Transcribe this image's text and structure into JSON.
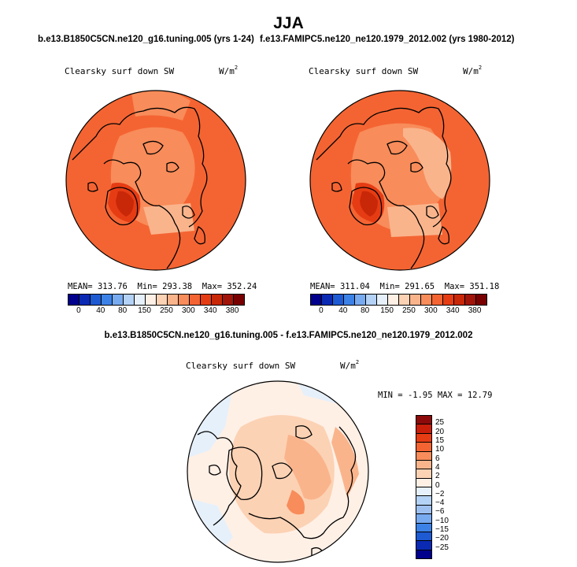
{
  "title": "JJA",
  "panels": [
    {
      "case": "b.e13.B1850C5CN.ne120_g16.tuning.005 (yrs 1-24)",
      "variable": "Clearsky surf down SW",
      "units_base": "W/m",
      "units_exp": "2",
      "stats": {
        "mean_label": "MEAN=",
        "mean": "313.76",
        "min_label": "Min=",
        "min": "293.38",
        "max_label": "Max=",
        "max": "352.24"
      },
      "colorbar_ticks": [
        "0",
        "40",
        "80",
        "150",
        "250",
        "300",
        "340",
        "380"
      ]
    },
    {
      "case": "f.e13.FAMIPC5.ne120_ne120.1979_2012.002 (yrs 1980-2012)",
      "variable": "Clearsky surf down SW",
      "units_base": "W/m",
      "units_exp": "2",
      "stats": {
        "mean_label": "MEAN=",
        "mean": "311.04",
        "min_label": "Min=",
        "min": "291.65",
        "max_label": "Max=",
        "max": "351.18"
      },
      "colorbar_ticks": [
        "0",
        "40",
        "80",
        "150",
        "250",
        "300",
        "340",
        "380"
      ]
    }
  ],
  "abs_colorbar_colors": [
    "#00008c",
    "#0a2ab4",
    "#1e5ad2",
    "#3c82e6",
    "#78aaf0",
    "#b4d2f5",
    "#e6f0fa",
    "#fff0e6",
    "#fcd2b4",
    "#fab48c",
    "#f88c5a",
    "#f46432",
    "#e63c14",
    "#c82808",
    "#a0140a",
    "#780000"
  ],
  "diff": {
    "title": "b.e13.B1850C5CN.ne120_g16.tuning.005 - f.e13.FAMIPC5.ne120_ne120.1979_2012.002",
    "variable": "Clearsky surf down SW",
    "units_base": "W/m",
    "units_exp": "2",
    "stats": {
      "min_label": "MIN =",
      "min": "-1.95",
      "max_label": "MAX =",
      "max": "12.79"
    },
    "colorbar_ticks": [
      "25",
      "20",
      "15",
      "10",
      "6",
      "4",
      "2",
      "0",
      "−2",
      "−4",
      "−6",
      "−10",
      "−15",
      "−20",
      "−25"
    ],
    "colorbar_colors": [
      "#8c0a0a",
      "#c81e0a",
      "#e63c14",
      "#f46432",
      "#f88c5a",
      "#fab48c",
      "#fcd2b4",
      "#fff0e6",
      "#e6f0fa",
      "#b4d2f5",
      "#9ec0f0",
      "#78aaf0",
      "#3c82e6",
      "#1e5ad2",
      "#0a2ab4",
      "#00008c"
    ]
  },
  "chart_data": [
    {
      "type": "heatmap",
      "title": "JJA",
      "subtitle": "b.e13.B1850C5CN.ne120_g16.tuning.005 (yrs 1-24)",
      "variable": "Clearsky surf down SW",
      "units": "W/m^2",
      "projection": "north polar stereographic",
      "mean": 313.76,
      "min": 293.38,
      "max": 352.24,
      "colorbar_levels": [
        0,
        40,
        80,
        150,
        250,
        300,
        340,
        380
      ]
    },
    {
      "type": "heatmap",
      "title": "JJA",
      "subtitle": "f.e13.FAMIPC5.ne120_ne120.1979_2012.002 (yrs 1980-2012)",
      "variable": "Clearsky surf down SW",
      "units": "W/m^2",
      "projection": "north polar stereographic",
      "mean": 311.04,
      "min": 291.65,
      "max": 351.18,
      "colorbar_levels": [
        0,
        40,
        80,
        150,
        250,
        300,
        340,
        380
      ]
    },
    {
      "type": "heatmap",
      "subtitle": "b.e13.B1850C5CN.ne120_g16.tuning.005 - f.e13.FAMIPC5.ne120_ne120.1979_2012.002",
      "variable": "Clearsky surf down SW",
      "units": "W/m^2",
      "projection": "north polar stereographic",
      "min": -1.95,
      "max": 12.79,
      "colorbar_levels": [
        -25,
        -20,
        -15,
        -10,
        -6,
        -4,
        -2,
        0,
        2,
        4,
        6,
        10,
        15,
        20,
        25
      ]
    }
  ]
}
